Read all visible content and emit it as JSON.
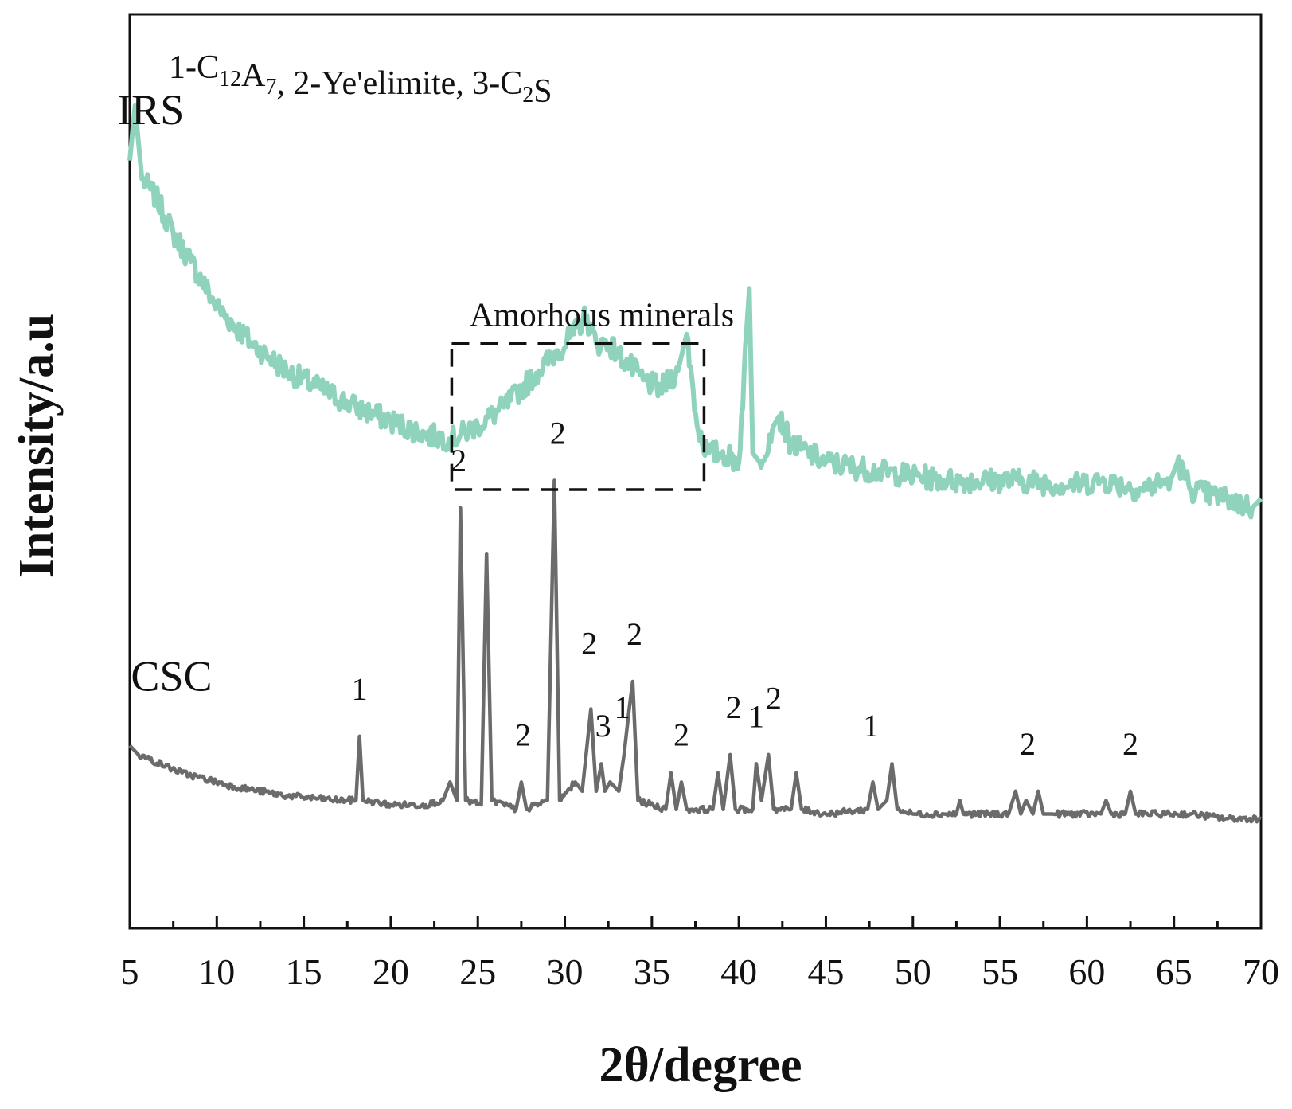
{
  "chart_data": {
    "type": "line",
    "xlabel": "2θ/degree",
    "ylabel": "Intensity/a.u",
    "xlim": [
      5,
      70
    ],
    "ylim": [
      0,
      100
    ],
    "xticks": [
      5,
      10,
      15,
      20,
      25,
      30,
      35,
      40,
      45,
      50,
      55,
      60,
      65,
      70
    ],
    "legend": {
      "parts": [
        {
          "text": "1-C"
        },
        {
          "text": "12",
          "sub": true
        },
        {
          "text": "A"
        },
        {
          "text": "7",
          "sub": true
        },
        {
          "text": ", 2-Ye'elimite, 3-C"
        },
        {
          "text": "2",
          "sub": true
        },
        {
          "text": "S"
        }
      ]
    },
    "annotation": {
      "label": "Amorhous minerals",
      "x_range": [
        23.5,
        38.0
      ],
      "y_range": [
        48,
        64
      ]
    },
    "series": [
      {
        "name": "IRS",
        "color": "#8fd3bd",
        "x": [
          5.0,
          5.3,
          5.7,
          6.5,
          7.5,
          8.5,
          10,
          12,
          14,
          16,
          18,
          20,
          22,
          23.5,
          25,
          26.5,
          27.5,
          28.5,
          29.5,
          30.5,
          31.2,
          31.8,
          32.5,
          33.5,
          34.5,
          35.5,
          36.5,
          37.0,
          37.6,
          38.2,
          39,
          40,
          40.6,
          40.8,
          41.2,
          42,
          42.3,
          43,
          45,
          48,
          52,
          56,
          59,
          61,
          63,
          64.8,
          65.2,
          66,
          68,
          69.5,
          70.0
        ],
        "values": [
          84,
          90,
          82,
          80,
          76,
          73,
          68,
          64,
          61,
          59,
          57,
          55.5,
          54,
          53.5,
          55,
          57,
          59,
          61,
          63,
          65,
          67,
          64,
          64,
          62,
          60,
          59,
          61,
          65,
          55,
          52,
          52,
          51,
          70,
          52,
          51,
          55,
          56,
          53,
          51,
          50,
          49,
          49,
          48.5,
          49,
          48,
          49,
          51,
          48,
          47,
          46,
          47
        ]
      },
      {
        "name": "CSC",
        "color": "#6b6b6b",
        "x": [
          5.0,
          5.5,
          8,
          11,
          14,
          17,
          18.0,
          18.2,
          18.4,
          20,
          22,
          23.0,
          23.4,
          23.8,
          24.0,
          24.3,
          25.2,
          25.5,
          25.8,
          27.2,
          27.5,
          27.8,
          29.0,
          29.4,
          29.7,
          30.6,
          31.0,
          31.5,
          31.8,
          32.1,
          32.3,
          32.6,
          33.1,
          33.4,
          33.7,
          33.9,
          34.2,
          35.8,
          36.1,
          36.4,
          36.7,
          37.0,
          38.5,
          38.8,
          39.1,
          39.5,
          39.8,
          40.8,
          41.0,
          41.3,
          41.7,
          42.0,
          43.0,
          43.3,
          43.6,
          45,
          47.4,
          47.7,
          48.0,
          48.5,
          48.8,
          49.1,
          50,
          52.5,
          52.7,
          52.9,
          55.5,
          55.9,
          56.2,
          56.5,
          56.9,
          57.2,
          57.5,
          57.8,
          58.0,
          60.8,
          61.1,
          61.4,
          62.2,
          62.5,
          62.8,
          64,
          66,
          68,
          70.0
        ],
        "values": [
          20,
          19,
          17,
          15.5,
          14.5,
          14,
          14,
          21,
          14,
          13.5,
          13.5,
          14,
          16,
          14,
          46,
          14,
          13.5,
          41,
          14,
          13,
          16,
          13,
          14,
          49,
          14,
          16,
          15,
          24,
          15,
          18,
          15,
          16,
          15,
          19,
          24,
          27,
          14,
          13,
          17,
          13,
          16,
          13,
          13,
          17,
          13,
          19,
          13,
          13,
          18,
          14,
          19,
          13,
          13,
          17,
          13,
          12.5,
          13,
          16,
          13,
          14,
          18,
          13,
          12.5,
          12.5,
          14,
          12.5,
          12.5,
          15,
          12.5,
          14,
          12.5,
          15,
          12.5,
          12.5,
          12.5,
          12.5,
          14,
          12.5,
          12.5,
          15,
          12.5,
          12.5,
          12.5,
          12,
          12
        ]
      }
    ],
    "peak_labels": [
      {
        "text": "1",
        "x": 18.2,
        "y": 25
      },
      {
        "text": "2",
        "x": 23.9,
        "y": 50
      },
      {
        "text": "2",
        "x": 27.6,
        "y": 20
      },
      {
        "text": "2",
        "x": 29.6,
        "y": 53
      },
      {
        "text": "2",
        "x": 31.4,
        "y": 30
      },
      {
        "text": "3",
        "x": 32.2,
        "y": 21
      },
      {
        "text": "1",
        "x": 33.3,
        "y": 23
      },
      {
        "text": "2",
        "x": 34.0,
        "y": 31
      },
      {
        "text": "2",
        "x": 36.7,
        "y": 20
      },
      {
        "text": "2",
        "x": 39.7,
        "y": 23
      },
      {
        "text": "1",
        "x": 41.0,
        "y": 22
      },
      {
        "text": "2",
        "x": 42.0,
        "y": 24
      },
      {
        "text": "1",
        "x": 47.6,
        "y": 21
      },
      {
        "text": "2",
        "x": 56.6,
        "y": 19
      },
      {
        "text": "2",
        "x": 62.5,
        "y": 19
      }
    ],
    "series_labels": [
      {
        "text": "IRS",
        "x": 6.2,
        "y": 88
      },
      {
        "text": "CSC",
        "x": 7.4,
        "y": 26
      }
    ]
  }
}
